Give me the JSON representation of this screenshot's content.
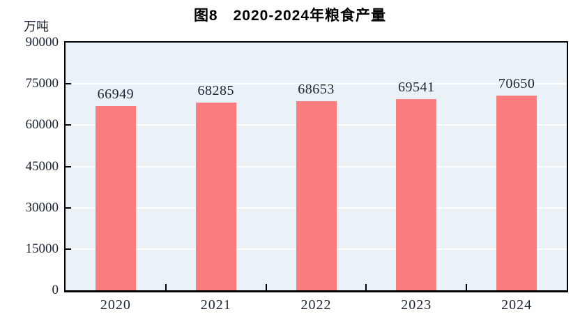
{
  "chart_data": {
    "type": "bar",
    "title": "图8　2020-2024年粮食产量",
    "unit_label": "万吨",
    "categories": [
      "2020",
      "2021",
      "2022",
      "2023",
      "2024"
    ],
    "values": [
      66949,
      68285,
      68653,
      69541,
      70650
    ],
    "value_labels": [
      "66949",
      "68285",
      "68653",
      "69541",
      "70650"
    ],
    "xlabel": "",
    "ylabel": "万吨",
    "ylim": [
      0,
      90000
    ],
    "yticks": [
      0,
      15000,
      30000,
      45000,
      60000,
      75000,
      90000
    ],
    "ytick_labels": [
      "0",
      "15000",
      "30000",
      "45000",
      "60000",
      "75000",
      "90000"
    ],
    "grid": true,
    "legend_position": "none",
    "colors": {
      "bar": "#fb7d7d",
      "plot_background": "#ebf2f7",
      "gridline": "#ffffff",
      "axis": "#000000",
      "tick_text": "#1a2433",
      "title_text": "#000000"
    }
  }
}
